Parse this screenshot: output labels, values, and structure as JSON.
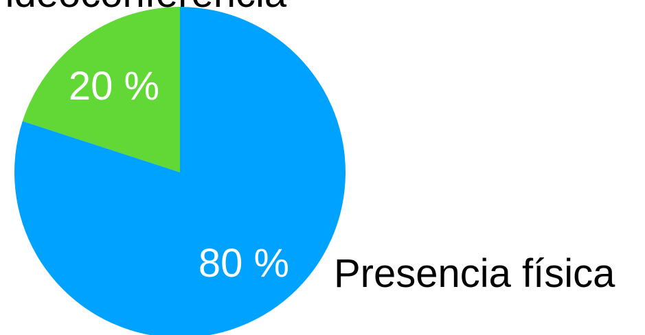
{
  "chart_data": {
    "type": "pie",
    "categories": [
      "Videoconferencia",
      "Presencia física"
    ],
    "values": [
      20,
      80
    ],
    "value_labels": [
      "20 %",
      "80 %"
    ],
    "colors": [
      "#62d837",
      "#00a2ff"
    ],
    "title": "",
    "legend": "none",
    "grid": false,
    "start": "top",
    "direction": "counter-clockwise"
  }
}
